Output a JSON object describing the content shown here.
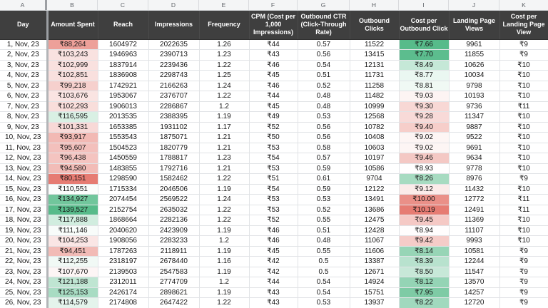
{
  "sheet": {
    "column_letters": [
      "A",
      "B",
      "C",
      "D",
      "E",
      "F",
      "G",
      "H",
      "I",
      "J",
      "K"
    ],
    "headers": {
      "day": "Day",
      "amount_spent": "Amount Spent",
      "reach": "Reach",
      "impressions": "Impressions",
      "frequency": "Frequency",
      "cpm": "CPM (Cost per 1,000 Impressions)",
      "outbound_ctr": "Outbound CTR (Click-Through Rate)",
      "outbound_clicks": "Outbound Clicks",
      "cost_per_outbound_click": "Cost per Outbound Click",
      "landing_page_views": "Landing Page Views",
      "cost_per_landing_page_view": "Cost per Landing Page View"
    },
    "rows": [
      {
        "day": "1, Nov, 23",
        "amount_spent": "₹88,264",
        "reach": "1604972",
        "impressions": "2022635",
        "frequency": "1.26",
        "cpm": "₹44",
        "outbound_ctr": "0.57",
        "outbound_clicks": "11522",
        "cost_per_outbound_click": "₹7.66",
        "landing_page_views": "9961",
        "cost_per_landing_page_view": "₹9"
      },
      {
        "day": "2, Nov, 23",
        "amount_spent": "₹103,243",
        "reach": "1946963",
        "impressions": "2390713",
        "frequency": "1.23",
        "cpm": "₹43",
        "outbound_ctr": "0.56",
        "outbound_clicks": "13415",
        "cost_per_outbound_click": "₹7.70",
        "landing_page_views": "11855",
        "cost_per_landing_page_view": "₹9"
      },
      {
        "day": "3, Nov, 23",
        "amount_spent": "₹102,999",
        "reach": "1837914",
        "impressions": "2239436",
        "frequency": "1.22",
        "cpm": "₹46",
        "outbound_ctr": "0.54",
        "outbound_clicks": "12131",
        "cost_per_outbound_click": "₹8.49",
        "landing_page_views": "10626",
        "cost_per_landing_page_view": "₹10"
      },
      {
        "day": "4, Nov, 23",
        "amount_spent": "₹102,851",
        "reach": "1836908",
        "impressions": "2298743",
        "frequency": "1.25",
        "cpm": "₹45",
        "outbound_ctr": "0.51",
        "outbound_clicks": "11731",
        "cost_per_outbound_click": "₹8.77",
        "landing_page_views": "10034",
        "cost_per_landing_page_view": "₹10"
      },
      {
        "day": "5, Nov, 23",
        "amount_spent": "₹99,218",
        "reach": "1742921",
        "impressions": "2166263",
        "frequency": "1.24",
        "cpm": "₹46",
        "outbound_ctr": "0.52",
        "outbound_clicks": "11258",
        "cost_per_outbound_click": "₹8.81",
        "landing_page_views": "9798",
        "cost_per_landing_page_view": "₹10"
      },
      {
        "day": "6, Nov, 23",
        "amount_spent": "₹103,676",
        "reach": "1953067",
        "impressions": "2376707",
        "frequency": "1.22",
        "cpm": "₹44",
        "outbound_ctr": "0.48",
        "outbound_clicks": "11482",
        "cost_per_outbound_click": "₹9.03",
        "landing_page_views": "10193",
        "cost_per_landing_page_view": "₹10"
      },
      {
        "day": "7, Nov, 23",
        "amount_spent": "₹102,293",
        "reach": "1906013",
        "impressions": "2286867",
        "frequency": "1.2",
        "cpm": "₹45",
        "outbound_ctr": "0.48",
        "outbound_clicks": "10999",
        "cost_per_outbound_click": "₹9.30",
        "landing_page_views": "9736",
        "cost_per_landing_page_view": "₹11"
      },
      {
        "day": "8, Nov, 23",
        "amount_spent": "₹116,595",
        "reach": "2013535",
        "impressions": "2388395",
        "frequency": "1.19",
        "cpm": "₹49",
        "outbound_ctr": "0.53",
        "outbound_clicks": "12568",
        "cost_per_outbound_click": "₹9.28",
        "landing_page_views": "11347",
        "cost_per_landing_page_view": "₹10"
      },
      {
        "day": "9, Nov, 23",
        "amount_spent": "₹101,331",
        "reach": "1653385",
        "impressions": "1931102",
        "frequency": "1.17",
        "cpm": "₹52",
        "outbound_ctr": "0.56",
        "outbound_clicks": "10782",
        "cost_per_outbound_click": "₹9.40",
        "landing_page_views": "9887",
        "cost_per_landing_page_view": "₹10"
      },
      {
        "day": "10, Nov, 23",
        "amount_spent": "₹93,917",
        "reach": "1553543",
        "impressions": "1875071",
        "frequency": "1.21",
        "cpm": "₹50",
        "outbound_ctr": "0.56",
        "outbound_clicks": "10408",
        "cost_per_outbound_click": "₹9.02",
        "landing_page_views": "9522",
        "cost_per_landing_page_view": "₹10"
      },
      {
        "day": "11, Nov, 23",
        "amount_spent": "₹95,607",
        "reach": "1504523",
        "impressions": "1820779",
        "frequency": "1.21",
        "cpm": "₹53",
        "outbound_ctr": "0.58",
        "outbound_clicks": "10603",
        "cost_per_outbound_click": "₹9.02",
        "landing_page_views": "9691",
        "cost_per_landing_page_view": "₹10"
      },
      {
        "day": "12, Nov, 23",
        "amount_spent": "₹96,438",
        "reach": "1450559",
        "impressions": "1788817",
        "frequency": "1.23",
        "cpm": "₹54",
        "outbound_ctr": "0.57",
        "outbound_clicks": "10197",
        "cost_per_outbound_click": "₹9.46",
        "landing_page_views": "9634",
        "cost_per_landing_page_view": "₹10"
      },
      {
        "day": "13, Nov, 23",
        "amount_spent": "₹94,580",
        "reach": "1483855",
        "impressions": "1792716",
        "frequency": "1.21",
        "cpm": "₹53",
        "outbound_ctr": "0.59",
        "outbound_clicks": "10586",
        "cost_per_outbound_click": "₹8.93",
        "landing_page_views": "9778",
        "cost_per_landing_page_view": "₹10"
      },
      {
        "day": "14, Nov, 23",
        "amount_spent": "₹80,151",
        "reach": "1298590",
        "impressions": "1582462",
        "frequency": "1.22",
        "cpm": "₹51",
        "outbound_ctr": "0.61",
        "outbound_clicks": "9704",
        "cost_per_outbound_click": "₹8.26",
        "landing_page_views": "8976",
        "cost_per_landing_page_view": "₹9"
      },
      {
        "day": "15, Nov, 23",
        "amount_spent": "₹110,551",
        "reach": "1715334",
        "impressions": "2046506",
        "frequency": "1.19",
        "cpm": "₹54",
        "outbound_ctr": "0.59",
        "outbound_clicks": "12122",
        "cost_per_outbound_click": "₹9.12",
        "landing_page_views": "11432",
        "cost_per_landing_page_view": "₹10"
      },
      {
        "day": "16, Nov, 23",
        "amount_spent": "₹134,927",
        "reach": "2074454",
        "impressions": "2569522",
        "frequency": "1.24",
        "cpm": "₹53",
        "outbound_ctr": "0.53",
        "outbound_clicks": "13491",
        "cost_per_outbound_click": "₹10.00",
        "landing_page_views": "12772",
        "cost_per_landing_page_view": "₹11"
      },
      {
        "day": "17, Nov, 23",
        "amount_spent": "₹139,527",
        "reach": "2152754",
        "impressions": "2635032",
        "frequency": "1.22",
        "cpm": "₹53",
        "outbound_ctr": "0.52",
        "outbound_clicks": "13686",
        "cost_per_outbound_click": "₹10.19",
        "landing_page_views": "12491",
        "cost_per_landing_page_view": "₹11"
      },
      {
        "day": "18, Nov, 23",
        "amount_spent": "₹117,888",
        "reach": "1868664",
        "impressions": "2282136",
        "frequency": "1.22",
        "cpm": "₹52",
        "outbound_ctr": "0.55",
        "outbound_clicks": "12475",
        "cost_per_outbound_click": "₹9.45",
        "landing_page_views": "11369",
        "cost_per_landing_page_view": "₹10"
      },
      {
        "day": "19, Nov, 23",
        "amount_spent": "₹111,146",
        "reach": "2040620",
        "impressions": "2423909",
        "frequency": "1.19",
        "cpm": "₹46",
        "outbound_ctr": "0.51",
        "outbound_clicks": "12428",
        "cost_per_outbound_click": "₹8.94",
        "landing_page_views": "11107",
        "cost_per_landing_page_view": "₹10"
      },
      {
        "day": "20, Nov, 23",
        "amount_spent": "₹104,253",
        "reach": "1908056",
        "impressions": "2283233",
        "frequency": "1.2",
        "cpm": "₹46",
        "outbound_ctr": "0.48",
        "outbound_clicks": "11067",
        "cost_per_outbound_click": "₹9.42",
        "landing_page_views": "9993",
        "cost_per_landing_page_view": "₹10"
      },
      {
        "day": "21, Nov, 23",
        "amount_spent": "₹94,451",
        "reach": "1787263",
        "impressions": "2118911",
        "frequency": "1.19",
        "cpm": "₹45",
        "outbound_ctr": "0.55",
        "outbound_clicks": "11606",
        "cost_per_outbound_click": "₹8.14",
        "landing_page_views": "10581",
        "cost_per_landing_page_view": "₹9"
      },
      {
        "day": "22, Nov, 23",
        "amount_spent": "₹112,255",
        "reach": "2318197",
        "impressions": "2678440",
        "frequency": "1.16",
        "cpm": "₹42",
        "outbound_ctr": "0.5",
        "outbound_clicks": "13387",
        "cost_per_outbound_click": "₹8.39",
        "landing_page_views": "12244",
        "cost_per_landing_page_view": "₹9"
      },
      {
        "day": "23, Nov, 23",
        "amount_spent": "₹107,670",
        "reach": "2139503",
        "impressions": "2547583",
        "frequency": "1.19",
        "cpm": "₹42",
        "outbound_ctr": "0.5",
        "outbound_clicks": "12671",
        "cost_per_outbound_click": "₹8.50",
        "landing_page_views": "11547",
        "cost_per_landing_page_view": "₹9"
      },
      {
        "day": "24, Nov, 23",
        "amount_spent": "₹121,188",
        "reach": "2312011",
        "impressions": "2774709",
        "frequency": "1.2",
        "cpm": "₹44",
        "outbound_ctr": "0.54",
        "outbound_clicks": "14924",
        "cost_per_outbound_click": "₹8.12",
        "landing_page_views": "13570",
        "cost_per_landing_page_view": "₹9"
      },
      {
        "day": "25, Nov, 23",
        "amount_spent": "₹125,153",
        "reach": "2426174",
        "impressions": "2898621",
        "frequency": "1.19",
        "cpm": "₹43",
        "outbound_ctr": "0.54",
        "outbound_clicks": "15751",
        "cost_per_outbound_click": "₹7.95",
        "landing_page_views": "14257",
        "cost_per_landing_page_view": "₹9"
      },
      {
        "day": "26, Nov, 23",
        "amount_spent": "₹114,579",
        "reach": "2174808",
        "impressions": "2647422",
        "frequency": "1.22",
        "cpm": "₹43",
        "outbound_ctr": "0.53",
        "outbound_clicks": "13937",
        "cost_per_outbound_click": "₹8.22",
        "landing_page_views": "12720",
        "cost_per_landing_page_view": "₹9"
      }
    ],
    "conditional_formatting": {
      "amount_spent": {
        "min_color": "#e67c73",
        "mid_color": "#ffffff",
        "max_color": "#57bb8a"
      },
      "cost_per_outbound_click": {
        "min_color": "#57bb8a",
        "mid_color": "#ffffff",
        "max_color": "#e67c73"
      }
    },
    "colors": {
      "header_bg": "#3f3f3f",
      "header_text": "#ffffff",
      "gridline": "#e1e3e6",
      "letter_strip_bg": "#f4f5f6",
      "frozen_divider": "#9c9fa3",
      "scale_red": "#e67c73",
      "scale_green": "#57bb8a"
    }
  }
}
